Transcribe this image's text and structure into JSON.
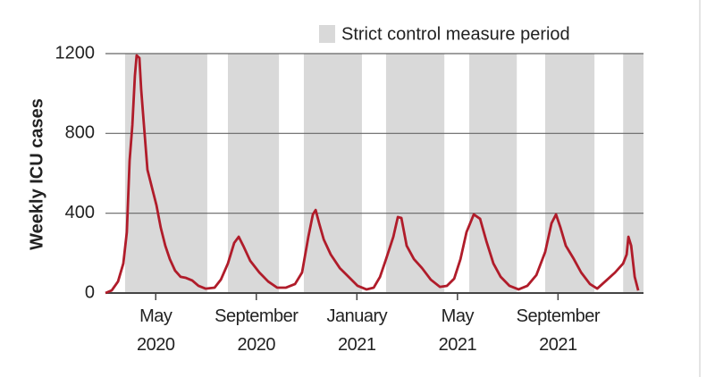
{
  "chart_data": {
    "type": "line",
    "y_label": "Weekly ICU cases",
    "x": [
      2.0,
      2.25,
      2.5,
      2.71,
      2.85,
      2.96,
      3.07,
      3.17,
      3.24,
      3.35,
      3.42,
      3.53,
      3.67,
      3.85,
      4.03,
      4.2,
      4.38,
      4.56,
      4.77,
      4.99,
      5.2,
      5.45,
      5.7,
      5.98,
      6.34,
      6.59,
      6.87,
      7.12,
      7.3,
      7.48,
      7.76,
      8.12,
      8.47,
      8.83,
      9.18,
      9.54,
      9.82,
      10.07,
      10.25,
      10.36,
      10.5,
      10.68,
      10.96,
      11.32,
      11.67,
      12.03,
      12.38,
      12.67,
      12.92,
      13.16,
      13.45,
      13.63,
      13.77,
      13.98,
      14.27,
      14.59,
      14.94,
      15.3,
      15.58,
      15.87,
      16.12,
      16.36,
      16.65,
      16.9,
      17.15,
      17.43,
      17.72,
      18.07,
      18.43,
      18.78,
      19.14,
      19.49,
      19.74,
      19.92,
      20.1,
      20.31,
      20.63,
      20.92,
      21.27,
      21.56,
      21.92,
      22.27,
      22.59,
      22.73,
      22.8,
      22.91,
      23.05,
      23.19
    ],
    "series": [
      {
        "name": "Weekly ICU cases",
        "color": "#b01c2a",
        "values": [
          0,
          13,
          58,
          148,
          305,
          663,
          842,
          1088,
          1191,
          1178,
          1021,
          842,
          618,
          528,
          439,
          327,
          237,
          170,
          112,
          81,
          76,
          63,
          36,
          22,
          27,
          67,
          148,
          251,
          282,
          237,
          161,
          103,
          58,
          27,
          27,
          45,
          103,
          282,
          394,
          416,
          349,
          269,
          193,
          125,
          81,
          36,
          18,
          27,
          81,
          170,
          282,
          381,
          376,
          237,
          170,
          125,
          67,
          31,
          36,
          72,
          170,
          305,
          394,
          372,
          260,
          148,
          81,
          36,
          18,
          36,
          90,
          206,
          349,
          394,
          327,
          237,
          170,
          103,
          45,
          22,
          63,
          103,
          148,
          193,
          282,
          237,
          81,
          13
        ]
      }
    ],
    "shaded_periods": {
      "name": "Strict control measure period",
      "color": "#d9d9d9",
      "ranges": [
        [
          2.78,
          6.05
        ],
        [
          6.87,
          8.9
        ],
        [
          9.89,
          12.2
        ],
        [
          13.16,
          15.48
        ],
        [
          16.47,
          18.36
        ],
        [
          19.49,
          21.45
        ],
        [
          22.59,
          23.4
        ]
      ]
    },
    "xlim": [
      2,
      23.4
    ],
    "xticks": [
      {
        "value": 4,
        "label": "May 2020"
      },
      {
        "value": 8,
        "label": "September 2020"
      },
      {
        "value": 12,
        "label": "January 2021"
      },
      {
        "value": 16,
        "label": "May 2021"
      },
      {
        "value": 20,
        "label": "September 2021"
      }
    ],
    "ylim": [
      0,
      1200
    ],
    "yticks": [
      0,
      400,
      800,
      1200
    ],
    "grid": true
  }
}
